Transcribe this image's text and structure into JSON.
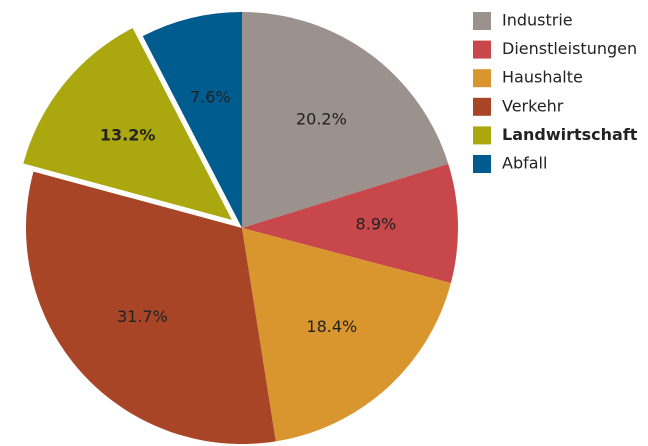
{
  "chart_data": {
    "type": "pie",
    "categories": [
      "Industrie",
      "Dienstleistungen",
      "Haushalte",
      "Verkehr",
      "Landwirtschaft",
      "Abfall"
    ],
    "values": [
      20.2,
      8.9,
      18.4,
      31.7,
      13.2,
      7.6
    ],
    "value_labels": [
      "20.2%",
      "8.9%",
      "18.4%",
      "31.7%",
      "13.2%",
      "7.6%"
    ],
    "colors": [
      "#9b918d",
      "#c8474a",
      "#da962e",
      "#a84527",
      "#aba70f",
      "#005b8f"
    ],
    "exploded": "Landwirtschaft",
    "legend": "right"
  }
}
